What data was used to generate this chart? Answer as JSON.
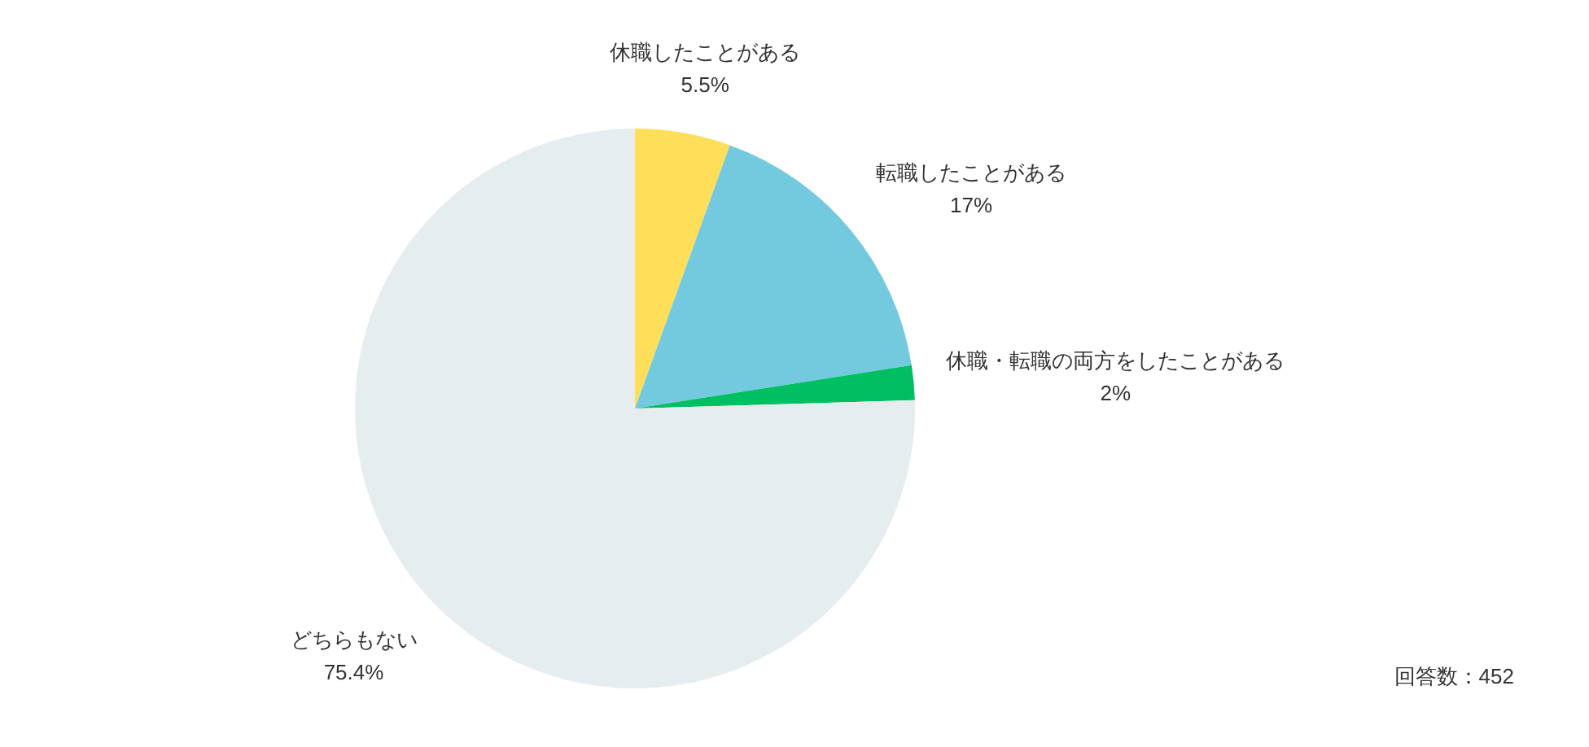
{
  "chart_data": {
    "type": "pie",
    "categories": [
      "休職したことがある",
      "転職したことがある",
      "休職・転職の両方をしたことがある",
      "どちらもない"
    ],
    "values": [
      5.5,
      17,
      2,
      75.4
    ],
    "colors": [
      "#ffde59",
      "#73cadf",
      "#00bf63",
      "#e5edef"
    ],
    "value_labels": [
      "5.5%",
      "17%",
      "2%",
      "75.4%"
    ],
    "annotations": [
      "回答数：452"
    ]
  }
}
